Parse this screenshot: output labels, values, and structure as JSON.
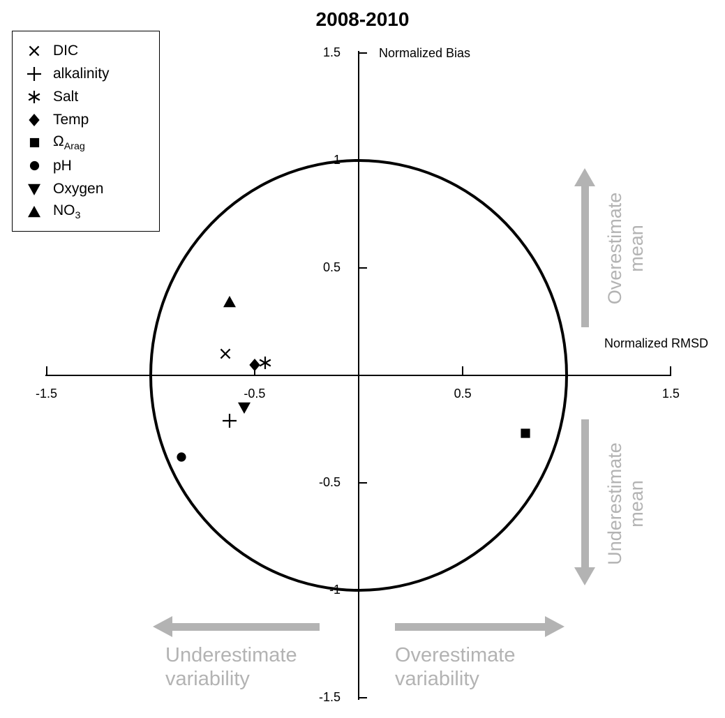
{
  "colors": {
    "foreground": "#000000",
    "marker": "#000000",
    "annotation": "#b3b3b3",
    "background": "#ffffff"
  },
  "legend": {
    "items": [
      {
        "name": "DIC",
        "marker": "x",
        "label": "DIC"
      },
      {
        "name": "alkalinity",
        "marker": "plus",
        "label": "alkalinity"
      },
      {
        "name": "Salt",
        "marker": "asterisk",
        "label": "Salt"
      },
      {
        "name": "Temp",
        "marker": "diamond",
        "label": "Temp"
      },
      {
        "name": "Omega_Arag",
        "marker": "square",
        "label": "Ω",
        "sub": "Arag"
      },
      {
        "name": "pH",
        "marker": "circle",
        "label": "pH"
      },
      {
        "name": "Oxygen",
        "marker": "triangle-down",
        "label": "Oxygen"
      },
      {
        "name": "NO3",
        "marker": "triangle-up",
        "label": "NO",
        "sub": "3"
      }
    ]
  },
  "chart_data": {
    "type": "scatter",
    "title": "2008-2010",
    "x_axis_label": "Normalized RMSD",
    "y_axis_label": "Normalized Bias",
    "xlim": [
      -1.5,
      1.5
    ],
    "ylim": [
      -1.5,
      1.5
    ],
    "grid": false,
    "legend_position": "top-left",
    "unit_circle_radius": 1,
    "x_ticks": [
      {
        "value": -1.5,
        "label": "-1.5"
      },
      {
        "value": -1,
        "label": ""
      },
      {
        "value": -0.5,
        "label": "-0.5"
      },
      {
        "value": 0.5,
        "label": "0.5"
      },
      {
        "value": 1,
        "label": ""
      },
      {
        "value": 1.5,
        "label": "1.5"
      }
    ],
    "y_ticks": [
      {
        "value": 1.5,
        "label": "1.5"
      },
      {
        "value": 1,
        "label": "1"
      },
      {
        "value": 0.5,
        "label": "0.5"
      },
      {
        "value": -0.5,
        "label": "-0.5"
      },
      {
        "value": -1,
        "label": "-1"
      },
      {
        "value": -1.5,
        "label": "-1.5"
      }
    ],
    "series": [
      {
        "name": "DIC",
        "marker": "x",
        "x": -0.64,
        "y": 0.1
      },
      {
        "name": "alkalinity",
        "marker": "plus",
        "x": -0.62,
        "y": -0.21
      },
      {
        "name": "Salt",
        "marker": "asterisk",
        "x": -0.45,
        "y": 0.06
      },
      {
        "name": "Temp",
        "marker": "diamond",
        "x": -0.5,
        "y": 0.05
      },
      {
        "name": "Omega_Arag",
        "marker": "square",
        "x": 0.8,
        "y": -0.27
      },
      {
        "name": "pH",
        "marker": "circle",
        "x": -0.85,
        "y": -0.38
      },
      {
        "name": "Oxygen",
        "marker": "triangle-down",
        "x": -0.55,
        "y": -0.15
      },
      {
        "name": "NO3",
        "marker": "triangle-up",
        "x": -0.62,
        "y": 0.34
      }
    ],
    "annotations": {
      "overestimate_mean": {
        "lines": [
          "Overestimate",
          "mean"
        ]
      },
      "underestimate_mean": {
        "lines": [
          "Underestimate",
          "mean"
        ]
      },
      "underestimate_variability": {
        "lines": [
          "Underestimate",
          "variability"
        ]
      },
      "overestimate_variability": {
        "lines": [
          "Overestimate",
          "variability"
        ]
      }
    }
  }
}
